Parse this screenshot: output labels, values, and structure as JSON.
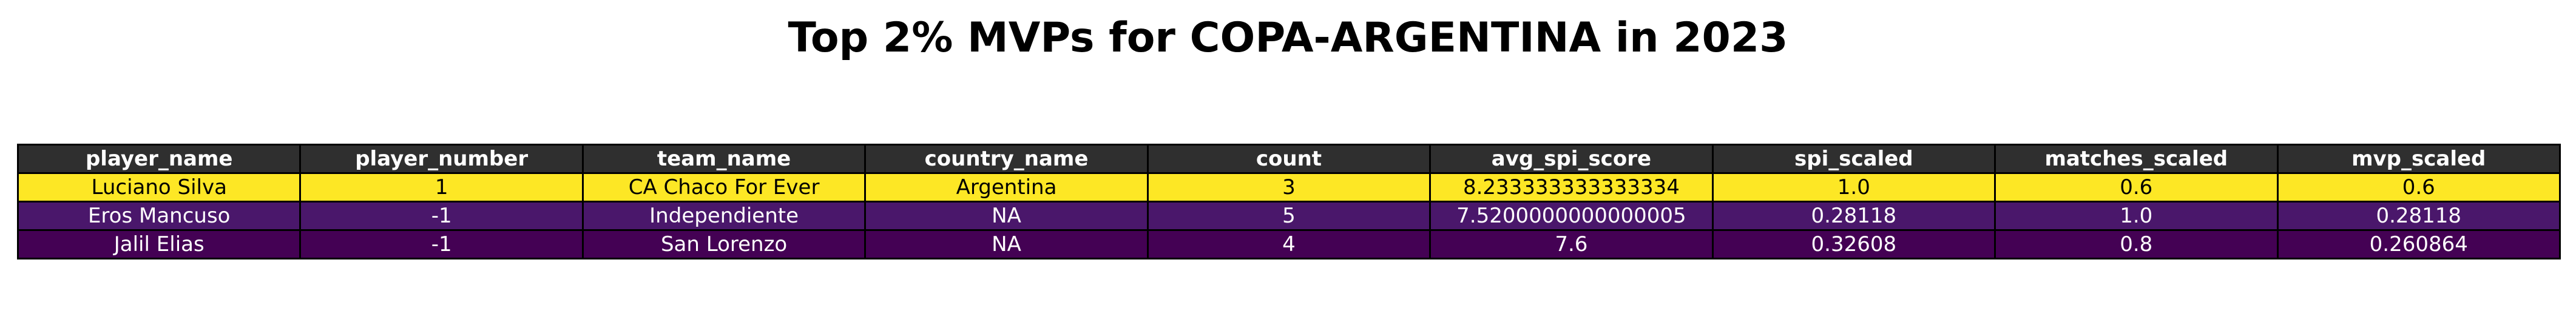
{
  "chart_data": {
    "type": "table",
    "title": "Top 2% MVPs for COPA-ARGENTINA in 2023",
    "columns": [
      "player_name",
      "player_number",
      "team_name",
      "country_name",
      "count",
      "avg_spi_score",
      "spi_scaled",
      "matches_scaled",
      "mvp_scaled"
    ],
    "rows": [
      {
        "cells": [
          "Luciano Silva",
          "1",
          "CA Chaco For Ever",
          "Argentina",
          "3",
          "8.233333333333334",
          "1.0",
          "0.6",
          "0.6"
        ],
        "background": "#fde725",
        "text_color": "#000000"
      },
      {
        "cells": [
          "Eros Mancuso",
          "-1",
          "Independiente",
          "NA",
          "5",
          "7.5200000000000005",
          "0.28118",
          "1.0",
          "0.28118"
        ],
        "background": "#4a176b",
        "text_color": "#ffffff"
      },
      {
        "cells": [
          "Jalil Elias",
          "-1",
          "San Lorenzo",
          "NA",
          "4",
          "7.6",
          "0.32608",
          "0.8",
          "0.260864"
        ],
        "background": "#440154",
        "text_color": "#ffffff"
      }
    ]
  },
  "colors": {
    "header_background": "#2f2f2f",
    "header_text": "#ffffff",
    "border": "#000000"
  }
}
